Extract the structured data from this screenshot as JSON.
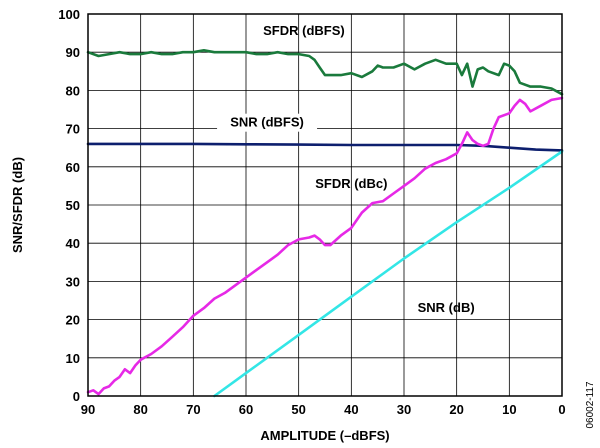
{
  "chart_data": {
    "type": "line",
    "xlabel": "AMPLITUDE (–dBFS)",
    "ylabel": "SNR/SFDR (dB)",
    "xlim": [
      90,
      0
    ],
    "ylim": [
      0,
      100
    ],
    "x_ticks": [
      "90",
      "80",
      "70",
      "60",
      "50",
      "40",
      "30",
      "20",
      "10",
      "0"
    ],
    "y_ticks": [
      "0",
      "10",
      "20",
      "30",
      "40",
      "50",
      "60",
      "70",
      "80",
      "90",
      "100"
    ],
    "grid": true,
    "figure_id": "06002-117",
    "series": [
      {
        "name": "SFDR (dBFS)",
        "color": "#1a7a3c",
        "x": [
          90,
          88,
          86,
          84,
          82,
          80,
          78,
          76,
          74,
          72,
          70,
          68,
          66,
          64,
          62,
          60,
          58,
          56,
          54,
          52,
          50,
          48,
          47,
          46,
          45,
          44,
          42,
          40,
          38,
          36,
          35,
          34,
          32,
          30,
          28,
          26,
          24,
          22,
          20,
          19,
          18,
          17,
          16,
          15,
          14,
          12,
          11,
          10,
          9,
          8,
          6,
          4,
          2,
          0
        ],
        "y": [
          90,
          89,
          89.5,
          90,
          89.5,
          89.5,
          90,
          89.5,
          89.5,
          90,
          90,
          90.5,
          90,
          90,
          90,
          90,
          89.5,
          89.5,
          90,
          89.5,
          89.5,
          89,
          88,
          86,
          84,
          84,
          84,
          84.5,
          83.5,
          85,
          86.5,
          86,
          86,
          87,
          85.5,
          87,
          88,
          87,
          87,
          84,
          87,
          81,
          85.5,
          86,
          85,
          84,
          87,
          86.5,
          85,
          82,
          81,
          81,
          80.5,
          79
        ]
      },
      {
        "name": "SNR (dBFS)",
        "color": "#0d1f6e",
        "x": [
          90,
          80,
          70,
          60,
          50,
          40,
          30,
          20,
          15,
          10,
          5,
          0
        ],
        "y": [
          66,
          66,
          66,
          65.9,
          65.8,
          65.7,
          65.7,
          65.7,
          65.5,
          65,
          64.5,
          64.3
        ]
      },
      {
        "name": "SFDR (dBc)",
        "color": "#e629e6",
        "x": [
          90,
          89,
          88,
          87,
          86,
          85,
          84,
          83,
          82,
          81,
          80,
          78,
          76,
          74,
          72,
          70,
          68,
          66,
          64,
          62,
          60,
          58,
          56,
          54,
          52,
          50,
          48,
          47,
          46,
          45,
          44,
          42,
          40,
          38,
          36,
          34,
          32,
          30,
          28,
          26,
          24,
          22,
          20,
          19,
          18,
          17,
          16,
          15,
          14,
          13,
          12,
          10,
          9,
          8,
          7,
          6,
          4,
          2,
          0
        ],
        "y": [
          1,
          1.5,
          0.5,
          2,
          2.5,
          4,
          5,
          7,
          6,
          8,
          9.5,
          11,
          13,
          15.5,
          18,
          21,
          23,
          25.5,
          27,
          29,
          31,
          33,
          35,
          37,
          39.5,
          41,
          41.5,
          42,
          41,
          39.5,
          39.5,
          42,
          44,
          48,
          50.5,
          51,
          53,
          55,
          57,
          59.5,
          61,
          62,
          63.5,
          66,
          69,
          67,
          66,
          65.5,
          66,
          70,
          73,
          74,
          76,
          77.5,
          76.5,
          74.5,
          76,
          77.5,
          78
        ]
      },
      {
        "name": "SNR (dB)",
        "color": "#33e6e6",
        "x": [
          66,
          60,
          50,
          40,
          30,
          20,
          10,
          0
        ],
        "y": [
          0,
          6,
          16,
          26,
          36,
          45.5,
          54.5,
          64
        ]
      }
    ]
  }
}
